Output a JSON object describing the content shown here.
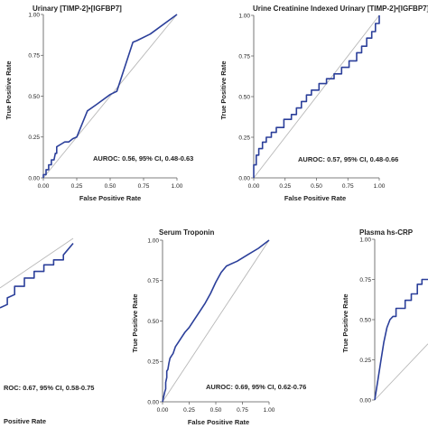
{
  "colors": {
    "roc": "#2b3f9a",
    "diagonal": "#b8b8b8",
    "axis": "#555555",
    "text": "#222222"
  },
  "chart_data": [
    {
      "type": "line",
      "title": "Urinary [TIMP-2]•[IGFBP7]",
      "xlabel": "False Positive Rate",
      "ylabel": "True Positive Rate",
      "annotation": "AUROC: 0.56, 95% CI, 0.48-0.63",
      "xlim": [
        0,
        1
      ],
      "ylim": [
        0,
        1
      ],
      "xticks": [
        "0.00",
        "0.25",
        "0.50",
        "0.75",
        "1.00"
      ],
      "yticks": [
        "0.00",
        "0.25",
        "0.50",
        "0.75",
        "1.00"
      ],
      "series": [
        {
          "x": [
            0,
            0,
            0.02,
            0.02,
            0.04,
            0.04,
            0.06,
            0.06,
            0.08,
            0.09,
            0.1,
            0.1,
            0.14,
            0.16,
            0.19,
            0.22,
            0.25,
            0.33,
            0.4,
            0.5,
            0.55,
            0.67,
            0.7,
            0.8,
            1.0
          ],
          "y": [
            0,
            0.02,
            0.02,
            0.05,
            0.05,
            0.08,
            0.08,
            0.11,
            0.11,
            0.15,
            0.15,
            0.19,
            0.21,
            0.22,
            0.22,
            0.24,
            0.25,
            0.41,
            0.45,
            0.51,
            0.53,
            0.83,
            0.84,
            0.88,
            1.0
          ]
        }
      ],
      "diagonal": true
    },
    {
      "type": "line",
      "title": "Urine Creatinine Indexed Urinary [TIMP-2]•[IGFBP7]",
      "xlabel": "False Positive Rate",
      "ylabel": "True Positive Rate",
      "annotation": "AUROC: 0.57, 95% CI, 0.48-0.66",
      "xlim": [
        0,
        1
      ],
      "ylim": [
        0,
        1
      ],
      "xticks": [
        "0.00",
        "0.25",
        "0.50",
        "0.75",
        "1.00"
      ],
      "yticks": [
        "0.00",
        "0.25",
        "0.50",
        "0.75",
        "1.00"
      ],
      "series": [
        {
          "x": [
            0,
            0,
            0.02,
            0.02,
            0.04,
            0.04,
            0.07,
            0.07,
            0.1,
            0.1,
            0.14,
            0.14,
            0.18,
            0.18,
            0.24,
            0.24,
            0.3,
            0.3,
            0.34,
            0.34,
            0.38,
            0.38,
            0.42,
            0.42,
            0.46,
            0.46,
            0.52,
            0.52,
            0.58,
            0.58,
            0.64,
            0.64,
            0.7,
            0.7,
            0.76,
            0.76,
            0.82,
            0.82,
            0.86,
            0.86,
            0.9,
            0.9,
            0.94,
            0.94,
            0.97,
            0.97,
            1.0,
            1.0
          ],
          "y": [
            0,
            0.08,
            0.08,
            0.14,
            0.14,
            0.18,
            0.18,
            0.22,
            0.22,
            0.25,
            0.25,
            0.28,
            0.28,
            0.31,
            0.31,
            0.36,
            0.36,
            0.39,
            0.39,
            0.43,
            0.43,
            0.47,
            0.47,
            0.51,
            0.51,
            0.54,
            0.54,
            0.58,
            0.58,
            0.61,
            0.61,
            0.64,
            0.64,
            0.68,
            0.68,
            0.72,
            0.72,
            0.77,
            0.77,
            0.81,
            0.81,
            0.86,
            0.86,
            0.9,
            0.9,
            0.95,
            0.95,
            1.0
          ]
        }
      ],
      "diagonal": true
    },
    {
      "type": "line",
      "title": "",
      "xlabel": "Positive Rate",
      "ylabel": "",
      "annotation": "ROC: 0.67, 95% CI, 0.58-0.75",
      "xlim": [
        0.7,
        1
      ],
      "ylim": [
        0,
        1
      ],
      "xticks": [],
      "yticks": [],
      "series": [
        {
          "x": [
            0.7,
            0.73,
            0.73,
            0.76,
            0.76,
            0.8,
            0.8,
            0.84,
            0.84,
            0.88,
            0.88,
            0.92,
            0.92,
            0.96,
            0.96,
            1.0
          ],
          "y": [
            0.58,
            0.6,
            0.64,
            0.66,
            0.71,
            0.71,
            0.76,
            0.76,
            0.8,
            0.8,
            0.84,
            0.84,
            0.87,
            0.87,
            0.9,
            0.97
          ]
        }
      ],
      "diagonal": true
    },
    {
      "type": "line",
      "title": "Serum Troponin",
      "xlabel": "False Positive Rate",
      "ylabel": "True Positive Rate",
      "annotation": "AUROC: 0.69, 95% CI, 0.62-0.76",
      "xlim": [
        0,
        1
      ],
      "ylim": [
        0,
        1
      ],
      "xticks": [
        "0.00",
        "0.25",
        "0.50",
        "0.75",
        "1.00"
      ],
      "yticks": [
        "0.00",
        "0.25",
        "0.50",
        "0.75",
        "1.00"
      ],
      "series": [
        {
          "x": [
            0,
            0.01,
            0.02,
            0.03,
            0.03,
            0.04,
            0.04,
            0.05,
            0.06,
            0.07,
            0.08,
            0.1,
            0.12,
            0.15,
            0.18,
            0.21,
            0.25,
            0.3,
            0.35,
            0.4,
            0.45,
            0.5,
            0.55,
            0.6,
            0.7,
            0.8,
            0.9,
            1.0
          ],
          "y": [
            0,
            0.03,
            0.06,
            0.08,
            0.12,
            0.15,
            0.19,
            0.2,
            0.24,
            0.27,
            0.28,
            0.3,
            0.34,
            0.37,
            0.4,
            0.43,
            0.46,
            0.51,
            0.56,
            0.61,
            0.67,
            0.74,
            0.8,
            0.84,
            0.87,
            0.91,
            0.95,
            1.0
          ]
        }
      ],
      "diagonal": true
    },
    {
      "type": "line",
      "title": "Plasma hs-CRP",
      "xlabel": "",
      "ylabel": "True Positive Rate",
      "annotation": "",
      "xlim": [
        0,
        0.35
      ],
      "ylim": [
        0,
        1
      ],
      "xticks": [],
      "yticks": [
        "0.00",
        "0.25",
        "0.50",
        "0.75",
        "1.00"
      ],
      "series": [
        {
          "x": [
            0,
            0.02,
            0.04,
            0.06,
            0.08,
            0.1,
            0.12,
            0.14,
            0.14,
            0.2,
            0.2,
            0.24,
            0.24,
            0.28,
            0.28,
            0.31,
            0.31,
            0.35
          ],
          "y": [
            0,
            0.12,
            0.24,
            0.36,
            0.45,
            0.5,
            0.52,
            0.52,
            0.57,
            0.57,
            0.62,
            0.62,
            0.66,
            0.66,
            0.72,
            0.72,
            0.75,
            0.75
          ]
        }
      ],
      "diagonal": true
    }
  ]
}
